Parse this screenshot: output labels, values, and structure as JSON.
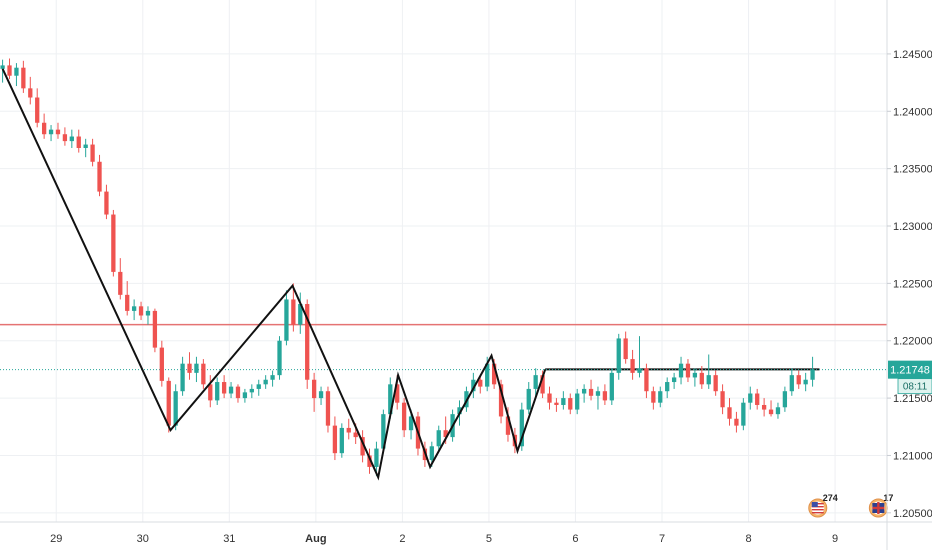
{
  "chart_data": {
    "type": "candlestick",
    "y_axis": {
      "ticks": [
        "1.24500",
        "1.24000",
        "1.23500",
        "1.23000",
        "1.22500",
        "1.22000",
        "1.21500",
        "1.21000",
        "1.20500"
      ],
      "range": [
        1.2042,
        1.2497
      ]
    },
    "x_axis": {
      "ticks": [
        "29",
        "30",
        "31",
        "Aug",
        "2",
        "5",
        "6",
        "7",
        "8",
        "9"
      ],
      "tick_x": [
        0.5,
        1.5,
        2.5,
        3.5,
        4.5,
        5.5,
        6.5,
        7.5,
        8.5,
        9.5
      ],
      "range": [
        -0.15,
        10.1
      ]
    },
    "last_price": {
      "label": "1.21748",
      "value": 1.21748
    },
    "countdown": "08:11",
    "horizontal_lines": [
      {
        "name": "resistance",
        "value": 1.2214,
        "color": "#e57373"
      },
      {
        "name": "flat-top",
        "value": 1.2175,
        "from_x": 6.15,
        "to_x": 9.32,
        "color": "#111111"
      }
    ],
    "zigzag": [
      {
        "x": -0.12,
        "y": 1.2437
      },
      {
        "x": 1.82,
        "y": 1.2122
      },
      {
        "x": 3.23,
        "y": 1.2248
      },
      {
        "x": 4.22,
        "y": 1.2081
      },
      {
        "x": 4.45,
        "y": 1.217
      },
      {
        "x": 4.82,
        "y": 1.209
      },
      {
        "x": 5.53,
        "y": 1.2187
      },
      {
        "x": 5.83,
        "y": 1.2104
      },
      {
        "x": 6.15,
        "y": 1.2175
      }
    ],
    "candles": [
      [
        -0.12,
        1.2437,
        1.2445,
        1.2425,
        1.244
      ],
      [
        -0.04,
        1.244,
        1.2446,
        1.2428,
        1.2431
      ],
      [
        0.04,
        1.2431,
        1.2442,
        1.2422,
        1.2438
      ],
      [
        0.12,
        1.2438,
        1.2444,
        1.2416,
        1.242
      ],
      [
        0.2,
        1.242,
        1.243,
        1.2406,
        1.2412
      ],
      [
        0.28,
        1.2412,
        1.242,
        1.2386,
        1.239
      ],
      [
        0.36,
        1.239,
        1.2398,
        1.2376,
        1.238
      ],
      [
        0.44,
        1.238,
        1.2388,
        1.2374,
        1.2384
      ],
      [
        0.52,
        1.2384,
        1.239,
        1.2376,
        1.238
      ],
      [
        0.6,
        1.238,
        1.2386,
        1.237,
        1.2374
      ],
      [
        0.68,
        1.2374,
        1.2384,
        1.2368,
        1.2378
      ],
      [
        0.76,
        1.2378,
        1.2384,
        1.2364,
        1.2368
      ],
      [
        0.84,
        1.2368,
        1.2376,
        1.236,
        1.2371
      ],
      [
        0.92,
        1.2371,
        1.2376,
        1.2352,
        1.2356
      ],
      [
        1.0,
        1.2356,
        1.2362,
        1.2326,
        1.233
      ],
      [
        1.08,
        1.233,
        1.2336,
        1.2306,
        1.231
      ],
      [
        1.16,
        1.231,
        1.2314,
        1.2256,
        1.226
      ],
      [
        1.24,
        1.226,
        1.2272,
        1.2236,
        1.224
      ],
      [
        1.32,
        1.224,
        1.2252,
        1.2222,
        1.2226
      ],
      [
        1.4,
        1.2226,
        1.2236,
        1.2218,
        1.223
      ],
      [
        1.48,
        1.223,
        1.2234,
        1.2218,
        1.2222
      ],
      [
        1.56,
        1.2222,
        1.223,
        1.2214,
        1.2226
      ],
      [
        1.64,
        1.2226,
        1.2228,
        1.219,
        1.2194
      ],
      [
        1.72,
        1.2194,
        1.22,
        1.216,
        1.2165
      ],
      [
        1.8,
        1.2165,
        1.2168,
        1.212,
        1.2126
      ],
      [
        1.88,
        1.2126,
        1.2162,
        1.2122,
        1.2156
      ],
      [
        1.96,
        1.2156,
        1.2186,
        1.2152,
        1.218
      ],
      [
        2.04,
        1.218,
        1.219,
        1.2166,
        1.2172
      ],
      [
        2.12,
        1.2172,
        1.2186,
        1.2164,
        1.218
      ],
      [
        2.2,
        1.218,
        1.2184,
        1.2158,
        1.2162
      ],
      [
        2.28,
        1.2162,
        1.217,
        1.2142,
        1.2148
      ],
      [
        2.36,
        1.2148,
        1.2168,
        1.2144,
        1.2164
      ],
      [
        2.44,
        1.2164,
        1.217,
        1.215,
        1.2154
      ],
      [
        2.52,
        1.2154,
        1.2164,
        1.215,
        1.216
      ],
      [
        2.6,
        1.216,
        1.2162,
        1.2146,
        1.215
      ],
      [
        2.68,
        1.215,
        1.2158,
        1.2146,
        1.2155
      ],
      [
        2.76,
        1.2155,
        1.2162,
        1.215,
        1.2158
      ],
      [
        2.84,
        1.2158,
        1.2166,
        1.2152,
        1.2162
      ],
      [
        2.92,
        1.2162,
        1.217,
        1.2158,
        1.2166
      ],
      [
        3.0,
        1.2166,
        1.2174,
        1.216,
        1.217
      ],
      [
        3.08,
        1.217,
        1.2204,
        1.2166,
        1.22
      ],
      [
        3.16,
        1.22,
        1.2244,
        1.2196,
        1.2236
      ],
      [
        3.24,
        1.2236,
        1.225,
        1.2208,
        1.2214
      ],
      [
        3.32,
        1.2214,
        1.2242,
        1.2206,
        1.2232
      ],
      [
        3.4,
        1.2232,
        1.2236,
        1.2158,
        1.2166
      ],
      [
        3.48,
        1.2166,
        1.2172,
        1.2138,
        1.215
      ],
      [
        3.56,
        1.215,
        1.216,
        1.2144,
        1.2156
      ],
      [
        3.64,
        1.2156,
        1.216,
        1.212,
        1.2126
      ],
      [
        3.72,
        1.2126,
        1.2134,
        1.2096,
        1.2102
      ],
      [
        3.8,
        1.2102,
        1.2128,
        1.2098,
        1.2124
      ],
      [
        3.88,
        1.2124,
        1.2132,
        1.2114,
        1.212
      ],
      [
        3.96,
        1.212,
        1.2128,
        1.211,
        1.2116
      ],
      [
        4.04,
        1.2116,
        1.2122,
        1.2094,
        1.21
      ],
      [
        4.12,
        1.21,
        1.2106,
        1.2084,
        1.209
      ],
      [
        4.2,
        1.209,
        1.2112,
        1.2082,
        1.2106
      ],
      [
        4.28,
        1.2106,
        1.214,
        1.2102,
        1.2136
      ],
      [
        4.36,
        1.2136,
        1.2168,
        1.2132,
        1.2162
      ],
      [
        4.44,
        1.2162,
        1.217,
        1.214,
        1.2146
      ],
      [
        4.52,
        1.2146,
        1.215,
        1.2116,
        1.2122
      ],
      [
        4.6,
        1.2122,
        1.214,
        1.2114,
        1.2134
      ],
      [
        4.68,
        1.2134,
        1.2138,
        1.21,
        1.2106
      ],
      [
        4.76,
        1.2106,
        1.2112,
        1.209,
        1.2096
      ],
      [
        4.84,
        1.2096,
        1.2112,
        1.209,
        1.2108
      ],
      [
        4.92,
        1.2108,
        1.2126,
        1.2104,
        1.2122
      ],
      [
        5.0,
        1.2122,
        1.2134,
        1.211,
        1.2116
      ],
      [
        5.08,
        1.2116,
        1.214,
        1.2112,
        1.2136
      ],
      [
        5.16,
        1.2136,
        1.2148,
        1.2126,
        1.2142
      ],
      [
        5.24,
        1.2142,
        1.216,
        1.2138,
        1.2156
      ],
      [
        5.32,
        1.2156,
        1.2172,
        1.215,
        1.2166
      ],
      [
        5.4,
        1.2166,
        1.217,
        1.2154,
        1.216
      ],
      [
        5.48,
        1.216,
        1.2186,
        1.2156,
        1.218
      ],
      [
        5.56,
        1.218,
        1.2184,
        1.2158,
        1.2162
      ],
      [
        5.64,
        1.2162,
        1.2166,
        1.2128,
        1.2134
      ],
      [
        5.72,
        1.2134,
        1.2142,
        1.2112,
        1.2118
      ],
      [
        5.8,
        1.2118,
        1.2124,
        1.2102,
        1.2108
      ],
      [
        5.88,
        1.2108,
        1.2146,
        1.2104,
        1.214
      ],
      [
        5.96,
        1.214,
        1.2164,
        1.2136,
        1.2158
      ],
      [
        6.04,
        1.2158,
        1.2176,
        1.215,
        1.217
      ],
      [
        6.12,
        1.217,
        1.2174,
        1.215,
        1.2154
      ],
      [
        6.2,
        1.2154,
        1.216,
        1.214,
        1.2146
      ],
      [
        6.28,
        1.2146,
        1.215,
        1.2138,
        1.2144
      ],
      [
        6.36,
        1.2144,
        1.2156,
        1.214,
        1.215
      ],
      [
        6.44,
        1.215,
        1.2154,
        1.2136,
        1.214
      ],
      [
        6.52,
        1.214,
        1.2158,
        1.2136,
        1.2154
      ],
      [
        6.6,
        1.2154,
        1.2162,
        1.2146,
        1.2158
      ],
      [
        6.68,
        1.2158,
        1.2166,
        1.2148,
        1.2152
      ],
      [
        6.76,
        1.2152,
        1.216,
        1.214,
        1.2156
      ],
      [
        6.84,
        1.2156,
        1.2162,
        1.2144,
        1.2148
      ],
      [
        6.92,
        1.2148,
        1.2176,
        1.2144,
        1.2172
      ],
      [
        7.0,
        1.2172,
        1.2206,
        1.2166,
        1.2202
      ],
      [
        7.08,
        1.2202,
        1.2208,
        1.218,
        1.2184
      ],
      [
        7.16,
        1.2184,
        1.2192,
        1.2166,
        1.2172
      ],
      [
        7.24,
        1.2172,
        1.2204,
        1.2168,
        1.2176
      ],
      [
        7.32,
        1.2176,
        1.218,
        1.215,
        1.2156
      ],
      [
        7.4,
        1.2156,
        1.216,
        1.214,
        1.2146
      ],
      [
        7.48,
        1.2146,
        1.216,
        1.2142,
        1.2156
      ],
      [
        7.56,
        1.2156,
        1.2168,
        1.215,
        1.2164
      ],
      [
        7.64,
        1.2164,
        1.2172,
        1.2158,
        1.2168
      ],
      [
        7.72,
        1.2168,
        1.2186,
        1.2162,
        1.218
      ],
      [
        7.8,
        1.218,
        1.2184,
        1.2164,
        1.2168
      ],
      [
        7.88,
        1.2168,
        1.2176,
        1.216,
        1.2172
      ],
      [
        7.96,
        1.2172,
        1.2178,
        1.2158,
        1.2162
      ],
      [
        8.04,
        1.2162,
        1.2188,
        1.2158,
        1.217
      ],
      [
        8.12,
        1.217,
        1.2174,
        1.2152,
        1.2156
      ],
      [
        8.2,
        1.2156,
        1.2162,
        1.2136,
        1.2142
      ],
      [
        8.28,
        1.2142,
        1.215,
        1.2126,
        1.2132
      ],
      [
        8.36,
        1.2132,
        1.2138,
        1.212,
        1.2126
      ],
      [
        8.44,
        1.2126,
        1.215,
        1.2122,
        1.2146
      ],
      [
        8.52,
        1.2146,
        1.216,
        1.214,
        1.2154
      ],
      [
        8.6,
        1.2154,
        1.2158,
        1.214,
        1.2144
      ],
      [
        8.68,
        1.2144,
        1.215,
        1.2134,
        1.214
      ],
      [
        8.76,
        1.214,
        1.2148,
        1.2134,
        1.2136
      ],
      [
        8.84,
        1.2136,
        1.2146,
        1.2132,
        1.2142
      ],
      [
        8.92,
        1.2142,
        1.216,
        1.2138,
        1.2156
      ],
      [
        9.0,
        1.2156,
        1.2176,
        1.2152,
        1.217
      ],
      [
        9.08,
        1.217,
        1.2174,
        1.2158,
        1.2162
      ],
      [
        9.16,
        1.2162,
        1.2172,
        1.2156,
        1.2166
      ],
      [
        9.24,
        1.2166,
        1.2186,
        1.216,
        1.2175
      ]
    ],
    "event_markers": [
      {
        "x": 9.3,
        "badge": "274",
        "flag": "us"
      },
      {
        "x": 10.0,
        "badge": "17",
        "flag": "uk"
      }
    ],
    "colors": {
      "up": "#26a69a",
      "down": "#ef5350",
      "grid": "#eef0f3",
      "axis_text": "#333333",
      "price_tag": "#26a69a"
    }
  }
}
